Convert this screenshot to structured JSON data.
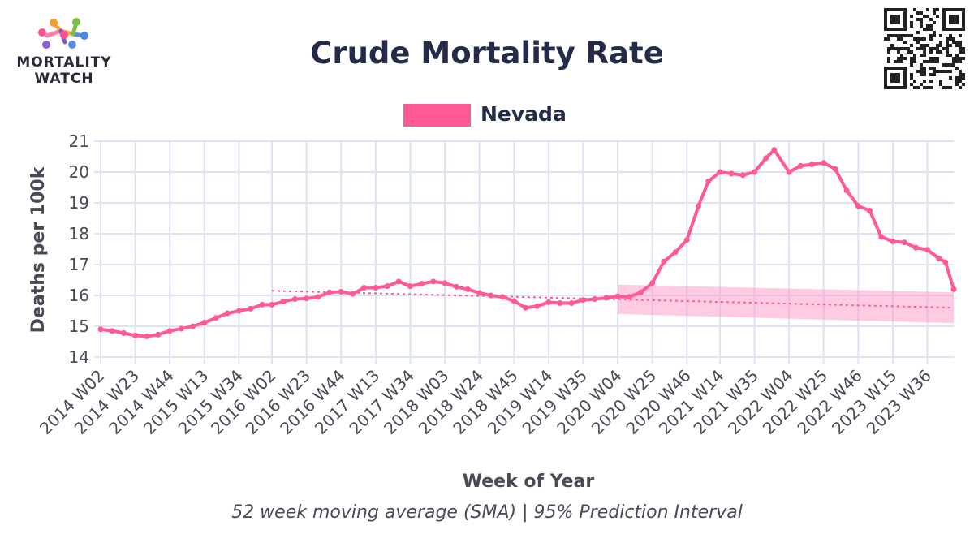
{
  "logo": {
    "line1": "MORTALITY",
    "line2": "WATCH"
  },
  "chart_data": {
    "type": "line",
    "title": "Crude Mortality Rate",
    "caption": "52 week moving average (SMA) | 95% Prediction Interval",
    "xlabel": "Week of Year",
    "ylabel": "Deaths per 100k",
    "ylim": [
      14,
      21
    ],
    "yticks": [
      14,
      15,
      16,
      17,
      18,
      19,
      20,
      21
    ],
    "x_tick_labels": [
      "2014 W02",
      "2014 W23",
      "2014 W44",
      "2015 W13",
      "2015 W34",
      "2016 W02",
      "2016 W23",
      "2016 W44",
      "2017 W13",
      "2017 W34",
      "2018 W03",
      "2018 W24",
      "2018 W45",
      "2019 W14",
      "2019 W35",
      "2020 W04",
      "2020 W25",
      "2020 W46",
      "2021 W14",
      "2021 W35",
      "2022 W04",
      "2022 W25",
      "2022 W46",
      "2023 W15",
      "2023 W36"
    ],
    "grid": true,
    "legend_position": "top-center",
    "series": [
      {
        "name": "Nevada",
        "color": "#ff5a96",
        "points": [
          [
            "2014 W02",
            14.9
          ],
          [
            "2014 W09",
            14.85
          ],
          [
            "2014 W16",
            14.78
          ],
          [
            "2014 W23",
            14.7
          ],
          [
            "2014 W30",
            14.67
          ],
          [
            "2014 W37",
            14.73
          ],
          [
            "2014 W44",
            14.85
          ],
          [
            "2014 W51",
            14.92
          ],
          [
            "2015 W06",
            15.0
          ],
          [
            "2015 W13",
            15.12
          ],
          [
            "2015 W20",
            15.27
          ],
          [
            "2015 W27",
            15.42
          ],
          [
            "2015 W34",
            15.5
          ],
          [
            "2015 W41",
            15.57
          ],
          [
            "2015 W48",
            15.7
          ],
          [
            "2016 W02",
            15.7
          ],
          [
            "2016 W09",
            15.8
          ],
          [
            "2016 W16",
            15.88
          ],
          [
            "2016 W23",
            15.9
          ],
          [
            "2016 W30",
            15.95
          ],
          [
            "2016 W37",
            16.1
          ],
          [
            "2016 W44",
            16.12
          ],
          [
            "2016 W51",
            16.05
          ],
          [
            "2017 W06",
            16.25
          ],
          [
            "2017 W13",
            16.25
          ],
          [
            "2017 W20",
            16.3
          ],
          [
            "2017 W27",
            16.45
          ],
          [
            "2017 W34",
            16.3
          ],
          [
            "2017 W41",
            16.38
          ],
          [
            "2017 W48",
            16.45
          ],
          [
            "2018 W03",
            16.4
          ],
          [
            "2018 W10",
            16.28
          ],
          [
            "2018 W17",
            16.2
          ],
          [
            "2018 W24",
            16.08
          ],
          [
            "2018 W31",
            16.0
          ],
          [
            "2018 W38",
            15.95
          ],
          [
            "2018 W45",
            15.82
          ],
          [
            "2018 W52",
            15.6
          ],
          [
            "2019 W07",
            15.65
          ],
          [
            "2019 W14",
            15.78
          ],
          [
            "2019 W21",
            15.75
          ],
          [
            "2019 W28",
            15.75
          ],
          [
            "2019 W35",
            15.85
          ],
          [
            "2019 W42",
            15.88
          ],
          [
            "2019 W49",
            15.92
          ],
          [
            "2020 W04",
            15.97
          ],
          [
            "2020 W11",
            15.95
          ],
          [
            "2020 W18",
            16.1
          ],
          [
            "2020 W25",
            16.4
          ],
          [
            "2020 W32",
            17.1
          ],
          [
            "2020 W39",
            17.4
          ],
          [
            "2020 W46",
            17.8
          ],
          [
            "2021 W01",
            18.9
          ],
          [
            "2021 W07",
            19.7
          ],
          [
            "2021 W14",
            20.0
          ],
          [
            "2021 W21",
            19.95
          ],
          [
            "2021 W28",
            19.9
          ],
          [
            "2021 W35",
            20.0
          ],
          [
            "2021 W42",
            20.45
          ],
          [
            "2021 W47",
            20.72
          ],
          [
            "2022 W04",
            20.0
          ],
          [
            "2022 W11",
            20.2
          ],
          [
            "2022 W18",
            20.25
          ],
          [
            "2022 W25",
            20.3
          ],
          [
            "2022 W32",
            20.1
          ],
          [
            "2022 W39",
            19.4
          ],
          [
            "2022 W46",
            18.9
          ],
          [
            "2023 W01",
            18.75
          ],
          [
            "2023 W08",
            17.9
          ],
          [
            "2023 W15",
            17.75
          ],
          [
            "2023 W22",
            17.72
          ],
          [
            "2023 W29",
            17.55
          ],
          [
            "2023 W36",
            17.48
          ],
          [
            "2023 W43",
            17.2
          ],
          [
            "2023 W47",
            17.08
          ],
          [
            "2023 W52",
            16.2
          ]
        ]
      }
    ],
    "baseline": {
      "style": "dotted",
      "points": [
        [
          "2016 W02",
          16.15
        ],
        [
          "2023 W52",
          15.6
        ]
      ]
    },
    "prediction_interval": {
      "level": "95%",
      "start": "2020 W04",
      "end": "2023 W52",
      "lower": [
        15.4,
        15.1
      ],
      "upper": [
        16.35,
        16.1
      ]
    }
  }
}
